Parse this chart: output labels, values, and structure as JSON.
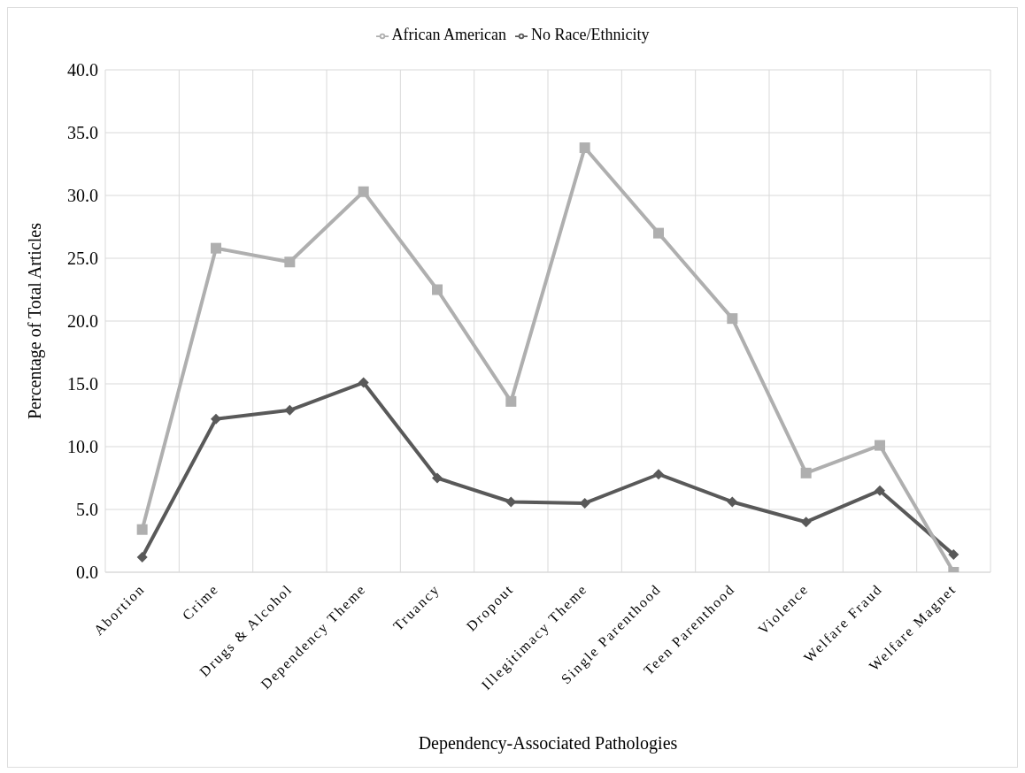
{
  "chart_data": {
    "type": "line",
    "xlabel": "Dependency-Associated Pathologies",
    "ylabel": "Percentage of Total Articles",
    "categories": [
      "Abortion",
      "Crime",
      "Drugs & Alcohol",
      "Dependency Theme",
      "Truancy",
      "Dropout",
      "Illegitimacy Theme",
      "Single Parenthood",
      "Teen Parenthood",
      "Violence",
      "Welfare Fraud",
      "Welfare Magnet"
    ],
    "series": [
      {
        "name": "No Race/Ethnicity",
        "color": "#595959",
        "marker": "diamond",
        "values": [
          1.2,
          12.2,
          12.9,
          15.1,
          7.5,
          5.6,
          5.5,
          7.8,
          5.6,
          4.0,
          6.5,
          1.4
        ]
      },
      {
        "name": "African American",
        "color": "#afafaf",
        "marker": "square",
        "values": [
          3.4,
          25.8,
          24.7,
          30.3,
          22.5,
          13.6,
          33.8,
          27.0,
          20.2,
          7.9,
          10.1,
          0.0
        ]
      }
    ],
    "ylim": [
      0,
      40
    ],
    "yticks": [
      {
        "value": 0,
        "label": "0.0"
      },
      {
        "value": 5,
        "label": "5.0"
      },
      {
        "value": 10,
        "label": "10.0"
      },
      {
        "value": 15,
        "label": "15.0"
      },
      {
        "value": 20,
        "label": "20.0"
      },
      {
        "value": 25,
        "label": "25.0"
      },
      {
        "value": 30,
        "label": "30.0"
      },
      {
        "value": 35,
        "label": "35.0"
      },
      {
        "value": 40,
        "label": "40.0"
      }
    ],
    "grid": true,
    "legend": "top",
    "line_style": "solid"
  }
}
